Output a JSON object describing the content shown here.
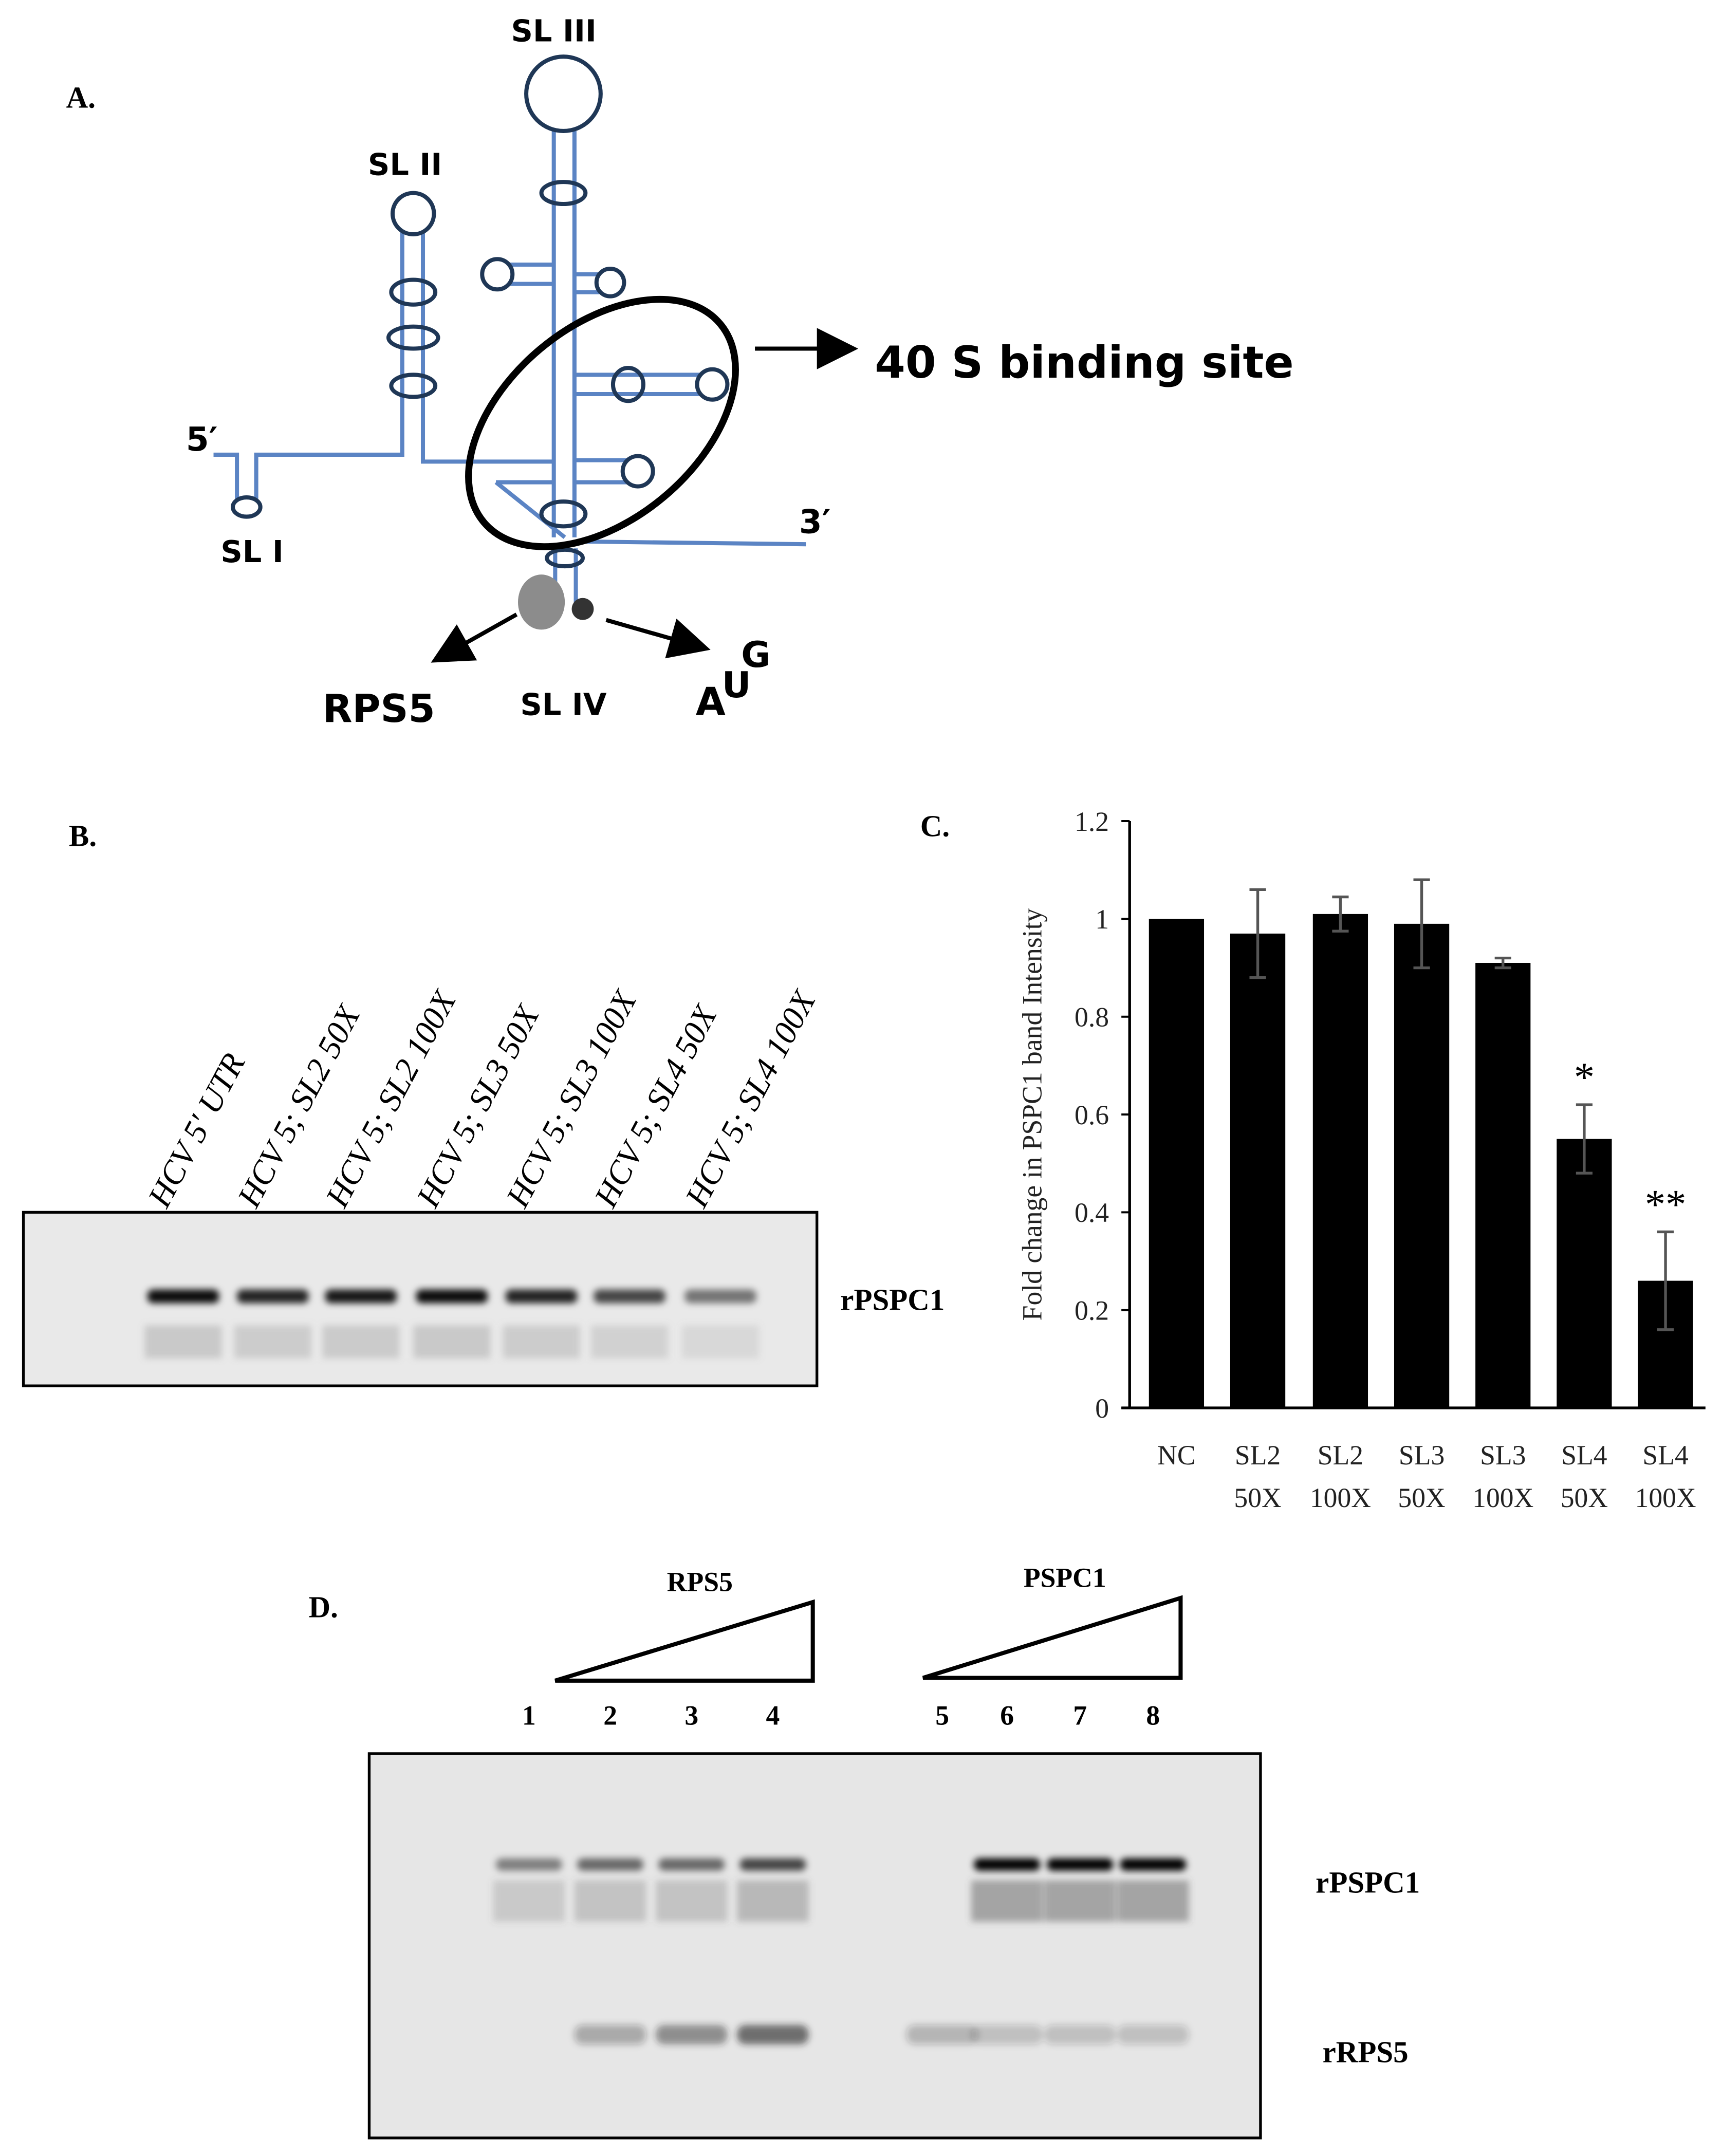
{
  "panel_a": {
    "label": "A.",
    "sl1": "SL I",
    "sl2": "SL II",
    "sl3": "SL III",
    "sl4": "SL IV",
    "five_prime": "5′",
    "three_prime": "3′",
    "binding_site": "40 S binding site",
    "rps5": "RPS5",
    "aug": [
      "A",
      "U",
      "G"
    ]
  },
  "panel_b": {
    "label": "B.",
    "lanes": [
      "HCV 5′ UTR",
      "HCV 5; SL2 50X",
      "HCV 5; SL2 100X",
      "HCV 5; SL3 50X",
      "HCV 5; SL3 100X",
      "HCV 5; SL4 50X",
      "HCV 5; SL4 100X"
    ],
    "band_label": "rPSPC1"
  },
  "panel_d": {
    "label": "D.",
    "group1": "RPS5",
    "group2": "PSPC1",
    "lanes": [
      "1",
      "2",
      "3",
      "4",
      "5",
      "6",
      "7",
      "8"
    ],
    "band_label_top": "rPSPC1",
    "band_label_bottom": "rRPS5"
  },
  "chart_data": {
    "panel_label": "C.",
    "type": "bar",
    "categories": [
      [
        "NC",
        ""
      ],
      [
        "SL2",
        "50X"
      ],
      [
        "SL2",
        "100X"
      ],
      [
        "SL3",
        "50X"
      ],
      [
        "SL3",
        "100X"
      ],
      [
        "SL4",
        "50X"
      ],
      [
        "SL4",
        "100X"
      ]
    ],
    "values": [
      1.0,
      0.97,
      1.01,
      0.99,
      0.91,
      0.55,
      0.26
    ],
    "errors": [
      0.0,
      0.09,
      0.035,
      0.09,
      0.01,
      0.07,
      0.1
    ],
    "annotations": [
      "",
      "",
      "",
      "",
      "",
      "*",
      "**"
    ],
    "ylabel": "Fold change in PSPC1 band Intensity",
    "xlabel": "",
    "ylim": [
      0,
      1.2
    ],
    "yticks": [
      "0",
      "0.2",
      "0.4",
      "0.6",
      "0.8",
      "1",
      "1.2"
    ],
    "grid": false,
    "bar_color": "#000000",
    "error_color": "#555555"
  }
}
